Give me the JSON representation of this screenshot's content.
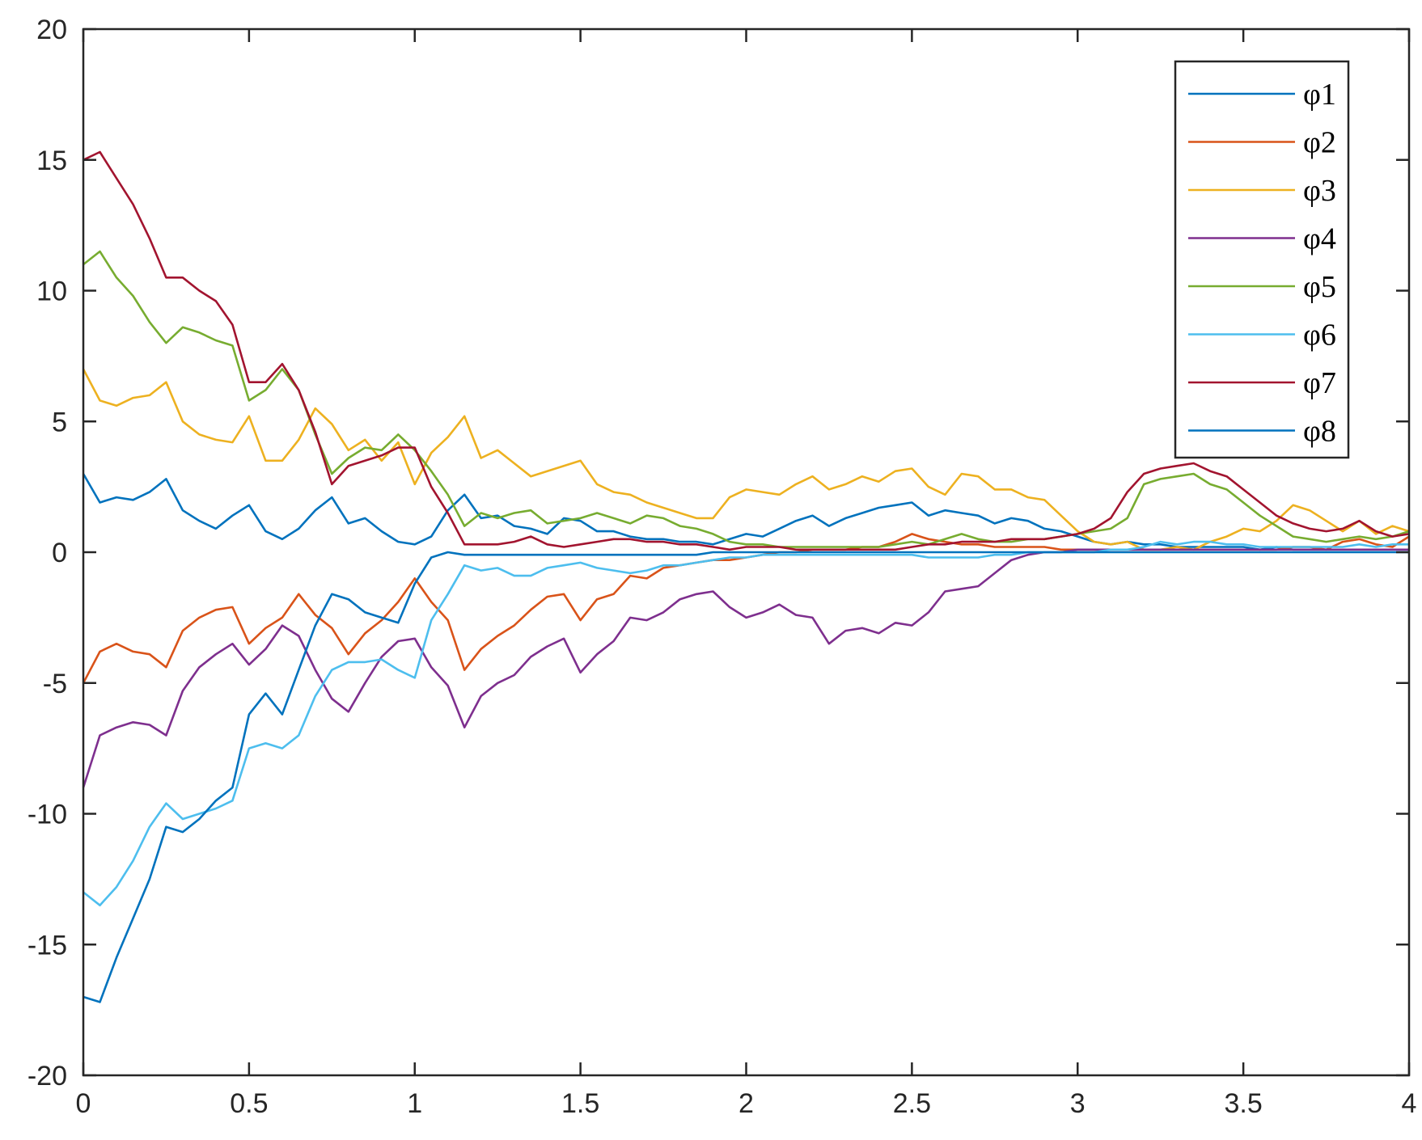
{
  "chart_data": {
    "type": "line",
    "title": "",
    "xlabel": "",
    "ylabel": "",
    "xlim": [
      0,
      4
    ],
    "ylim": [
      -20,
      20
    ],
    "x_ticks": [
      "0",
      "0.5",
      "1",
      "1.5",
      "2",
      "2.5",
      "3",
      "3.5",
      "4"
    ],
    "y_ticks": [
      "-20",
      "-15",
      "-10",
      "-5",
      "0",
      "5",
      "10",
      "15",
      "20"
    ],
    "grid": false,
    "legend_position": "top-right",
    "x": [
      0,
      0.05,
      0.1,
      0.15,
      0.2,
      0.25,
      0.3,
      0.35,
      0.4,
      0.45,
      0.5,
      0.55,
      0.6,
      0.65,
      0.7,
      0.75,
      0.8,
      0.85,
      0.9,
      0.95,
      1,
      1.05,
      1.1,
      1.15,
      1.2,
      1.25,
      1.3,
      1.35,
      1.4,
      1.45,
      1.5,
      1.55,
      1.6,
      1.65,
      1.7,
      1.75,
      1.8,
      1.85,
      1.9,
      1.95,
      2,
      2.05,
      2.1,
      2.15,
      2.2,
      2.25,
      2.3,
      2.35,
      2.4,
      2.45,
      2.5,
      2.55,
      2.6,
      2.65,
      2.7,
      2.75,
      2.8,
      2.85,
      2.9,
      2.95,
      3,
      3.05,
      3.1,
      3.15,
      3.2,
      3.25,
      3.3,
      3.35,
      3.4,
      3.45,
      3.5,
      3.55,
      3.6,
      3.65,
      3.7,
      3.75,
      3.8,
      3.85,
      3.9,
      3.95,
      4
    ],
    "series": [
      {
        "name": "φ1",
        "color": "#0072BD",
        "values": [
          3,
          1.9,
          2.1,
          2,
          2.3,
          2.8,
          1.6,
          1.2,
          0.9,
          1.4,
          1.8,
          0.8,
          0.5,
          0.9,
          1.6,
          2.1,
          1.1,
          1.3,
          0.8,
          0.4,
          0.3,
          0.6,
          1.6,
          2.2,
          1.3,
          1.4,
          1,
          0.9,
          0.7,
          1.3,
          1.2,
          0.8,
          0.8,
          0.6,
          0.5,
          0.5,
          0.4,
          0.4,
          0.3,
          0.5,
          0.7,
          0.6,
          0.9,
          1.2,
          1.4,
          1,
          1.3,
          1.5,
          1.7,
          1.8,
          1.9,
          1.4,
          1.6,
          1.5,
          1.4,
          1.1,
          1.3,
          1.2,
          0.9,
          0.8,
          0.6,
          0.4,
          0.3,
          0.4,
          0.3,
          0.3,
          0.2,
          0.2,
          0.2,
          0.2,
          0.2,
          0.1,
          0.2,
          0.1,
          0.1,
          0.1,
          0.1,
          0.1,
          0.1,
          0.1,
          0.1
        ]
      },
      {
        "name": "φ2",
        "color": "#D95319",
        "values": [
          -5,
          -3.8,
          -3.5,
          -3.8,
          -3.9,
          -4.4,
          -3,
          -2.5,
          -2.2,
          -2.1,
          -3.5,
          -2.9,
          -2.5,
          -1.6,
          -2.4,
          -2.9,
          -3.9,
          -3.1,
          -2.6,
          -1.9,
          -1,
          -1.9,
          -2.6,
          -4.5,
          -3.7,
          -3.2,
          -2.8,
          -2.2,
          -1.7,
          -1.6,
          -2.6,
          -1.8,
          -1.6,
          -0.9,
          -1,
          -0.6,
          -0.5,
          -0.4,
          -0.3,
          -0.3,
          -0.2,
          -0.1,
          0,
          0,
          0.1,
          0.1,
          0.1,
          0.2,
          0.2,
          0.4,
          0.7,
          0.5,
          0.4,
          0.3,
          0.3,
          0.2,
          0.2,
          0.2,
          0.2,
          0.1,
          0.1,
          0.1,
          0.1,
          0.1,
          0.1,
          0.1,
          0.1,
          0.1,
          0.1,
          0.1,
          0.1,
          0.1,
          0.1,
          0.2,
          0.2,
          0.1,
          0.4,
          0.5,
          0.3,
          0.2,
          0.6
        ]
      },
      {
        "name": "φ3",
        "color": "#EDB120",
        "values": [
          7,
          5.8,
          5.6,
          5.9,
          6,
          6.5,
          5,
          4.5,
          4.3,
          4.2,
          5.2,
          3.5,
          3.5,
          4.3,
          5.5,
          4.9,
          3.9,
          4.3,
          3.5,
          4.2,
          2.6,
          3.8,
          4.4,
          5.2,
          3.6,
          3.9,
          3.4,
          2.9,
          3.1,
          3.3,
          3.5,
          2.6,
          2.3,
          2.2,
          1.9,
          1.7,
          1.5,
          1.3,
          1.3,
          2.1,
          2.4,
          2.3,
          2.2,
          2.6,
          2.9,
          2.4,
          2.6,
          2.9,
          2.7,
          3.1,
          3.2,
          2.5,
          2.2,
          3,
          2.9,
          2.4,
          2.4,
          2.1,
          2,
          1.4,
          0.8,
          0.4,
          0.3,
          0.4,
          0.1,
          0.1,
          0.2,
          0.1,
          0.4,
          0.6,
          0.9,
          0.8,
          1.2,
          1.8,
          1.6,
          1.2,
          0.8,
          1.2,
          0.7,
          1,
          0.8
        ]
      },
      {
        "name": "φ4",
        "color": "#7E2F8E",
        "values": [
          -9,
          -7,
          -6.7,
          -6.5,
          -6.6,
          -7,
          -5.3,
          -4.4,
          -3.9,
          -3.5,
          -4.3,
          -3.7,
          -2.8,
          -3.2,
          -4.5,
          -5.6,
          -6.1,
          -5,
          -4,
          -3.4,
          -3.3,
          -4.4,
          -5.1,
          -6.7,
          -5.5,
          -5,
          -4.7,
          -4,
          -3.6,
          -3.3,
          -4.6,
          -3.9,
          -3.4,
          -2.5,
          -2.6,
          -2.3,
          -1.8,
          -1.6,
          -1.5,
          -2.1,
          -2.5,
          -2.3,
          -2,
          -2.4,
          -2.5,
          -3.5,
          -3,
          -2.9,
          -3.1,
          -2.7,
          -2.8,
          -2.3,
          -1.5,
          -1.4,
          -1.3,
          -0.8,
          -0.3,
          -0.1,
          0,
          0,
          0.1,
          0.1,
          0.1,
          0.1,
          0.1,
          0.1,
          0.1,
          0.1,
          0.1,
          0.1,
          0.1,
          0.1,
          0.1,
          0.1,
          0.1,
          0.1,
          0.1,
          0.1,
          0.1,
          0.1,
          0.1
        ]
      },
      {
        "name": "φ5",
        "color": "#77AC30",
        "values": [
          11,
          11.5,
          10.5,
          9.8,
          8.8,
          8,
          8.6,
          8.4,
          8.1,
          7.9,
          5.8,
          6.2,
          7,
          6.2,
          4.5,
          3,
          3.6,
          4,
          3.9,
          4.5,
          3.9,
          3.1,
          2.2,
          1,
          1.5,
          1.3,
          1.5,
          1.6,
          1.1,
          1.2,
          1.3,
          1.5,
          1.3,
          1.1,
          1.4,
          1.3,
          1,
          0.9,
          0.7,
          0.4,
          0.3,
          0.3,
          0.2,
          0.2,
          0.2,
          0.2,
          0.2,
          0.2,
          0.2,
          0.3,
          0.4,
          0.3,
          0.5,
          0.7,
          0.5,
          0.4,
          0.4,
          0.5,
          0.5,
          0.6,
          0.7,
          0.8,
          0.9,
          1.3,
          2.6,
          2.8,
          2.9,
          3,
          2.6,
          2.4,
          1.9,
          1.4,
          1,
          0.6,
          0.5,
          0.4,
          0.5,
          0.6,
          0.5,
          0.6,
          0.8
        ]
      },
      {
        "name": "φ6",
        "color": "#4DBEEE",
        "values": [
          -13,
          -13.5,
          -12.8,
          -11.8,
          -10.5,
          -9.6,
          -10.2,
          -10,
          -9.8,
          -9.5,
          -7.5,
          -7.3,
          -7.5,
          -7,
          -5.5,
          -4.5,
          -4.2,
          -4.2,
          -4.1,
          -4.5,
          -4.8,
          -2.6,
          -1.6,
          -0.5,
          -0.7,
          -0.6,
          -0.9,
          -0.9,
          -0.6,
          -0.5,
          -0.4,
          -0.6,
          -0.7,
          -0.8,
          -0.7,
          -0.5,
          -0.5,
          -0.4,
          -0.3,
          -0.2,
          -0.2,
          -0.1,
          -0.1,
          -0.1,
          -0.1,
          -0.1,
          -0.1,
          -0.1,
          -0.1,
          -0.1,
          -0.1,
          -0.2,
          -0.2,
          -0.2,
          -0.2,
          -0.1,
          -0.1,
          0,
          0,
          0,
          0,
          0,
          0.1,
          0.1,
          0.2,
          0.4,
          0.3,
          0.4,
          0.4,
          0.3,
          0.3,
          0.2,
          0.2,
          0.2,
          0.2,
          0.2,
          0.2,
          0.3,
          0.2,
          0.3,
          0.3
        ]
      },
      {
        "name": "φ7",
        "color": "#A2142F",
        "values": [
          15,
          15.3,
          14.3,
          13.3,
          12,
          10.5,
          10.5,
          10,
          9.6,
          8.7,
          6.5,
          6.5,
          7.2,
          6.2,
          4.6,
          2.6,
          3.3,
          3.5,
          3.7,
          4,
          4,
          2.5,
          1.5,
          0.3,
          0.3,
          0.3,
          0.4,
          0.6,
          0.3,
          0.2,
          0.3,
          0.4,
          0.5,
          0.5,
          0.4,
          0.4,
          0.3,
          0.3,
          0.2,
          0.1,
          0.2,
          0.2,
          0.2,
          0.1,
          0.1,
          0.1,
          0.1,
          0.1,
          0.1,
          0.1,
          0.2,
          0.3,
          0.3,
          0.4,
          0.4,
          0.4,
          0.5,
          0.5,
          0.5,
          0.6,
          0.7,
          0.9,
          1.3,
          2.3,
          3,
          3.2,
          3.3,
          3.4,
          3.1,
          2.9,
          2.4,
          1.9,
          1.4,
          1.1,
          0.9,
          0.8,
          0.9,
          1.2,
          0.8,
          0.6,
          0.7
        ]
      },
      {
        "name": "φ8",
        "color": "#0072BD",
        "values": [
          -17,
          -17.2,
          -15.5,
          -14,
          -12.5,
          -10.5,
          -10.7,
          -10.2,
          -9.5,
          -9,
          -6.2,
          -5.4,
          -6.2,
          -4.5,
          -2.8,
          -1.6,
          -1.8,
          -2.3,
          -2.5,
          -2.7,
          -1.2,
          -0.2,
          0,
          -0.1,
          -0.1,
          -0.1,
          -0.1,
          -0.1,
          -0.1,
          -0.1,
          -0.1,
          -0.1,
          -0.1,
          -0.1,
          -0.1,
          -0.1,
          -0.1,
          -0.1,
          0,
          0,
          0,
          0,
          0,
          0,
          0,
          0,
          0,
          0,
          0,
          0,
          0,
          0,
          0,
          0,
          0,
          0,
          0,
          0,
          0,
          0,
          0,
          0,
          0,
          0,
          0,
          0,
          0,
          0,
          0,
          0,
          0,
          0,
          0,
          0,
          0,
          0,
          0,
          0,
          0,
          0,
          0
        ]
      }
    ]
  }
}
